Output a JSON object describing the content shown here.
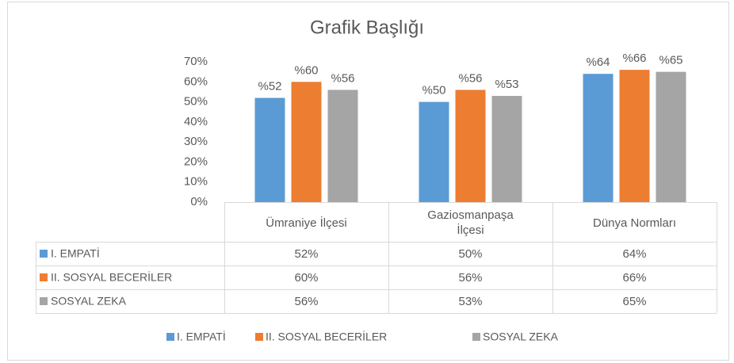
{
  "chart_data": {
    "type": "bar",
    "title": "Grafik Başlığı",
    "categories": [
      "Ümraniye İlçesi",
      "Gaziosmanpaşa İlçesi",
      "Dünya Normları"
    ],
    "series": [
      {
        "name": "I. EMPATİ",
        "color": "#5b9bd5",
        "values": [
          52,
          50,
          64
        ],
        "value_labels": [
          "%52",
          "%50",
          "%64"
        ],
        "table_labels": [
          "52%",
          "50%",
          "64%"
        ]
      },
      {
        "name": "II. SOSYAL BECERİLER",
        "color": "#ed7d31",
        "values": [
          60,
          56,
          66
        ],
        "value_labels": [
          "%60",
          "%56",
          "%66"
        ],
        "table_labels": [
          "60%",
          "56%",
          "66%"
        ]
      },
      {
        "name": "SOSYAL ZEKA",
        "color": "#a5a5a5",
        "values": [
          56,
          53,
          65
        ],
        "value_labels": [
          "%56",
          "%53",
          "%65"
        ],
        "table_labels": [
          "56%",
          "53%",
          "65%"
        ]
      }
    ],
    "ylim": [
      0,
      70
    ],
    "yticks": [
      {
        "value": 0,
        "label": "0%"
      },
      {
        "value": 10,
        "label": "10%"
      },
      {
        "value": 20,
        "label": "20%"
      },
      {
        "value": 30,
        "label": "30%"
      },
      {
        "value": 40,
        "label": "40%"
      },
      {
        "value": 50,
        "label": "50%"
      },
      {
        "value": 60,
        "label": "60%"
      },
      {
        "value": 70,
        "label": "70%"
      }
    ],
    "grid": false,
    "legend": "bottom"
  }
}
